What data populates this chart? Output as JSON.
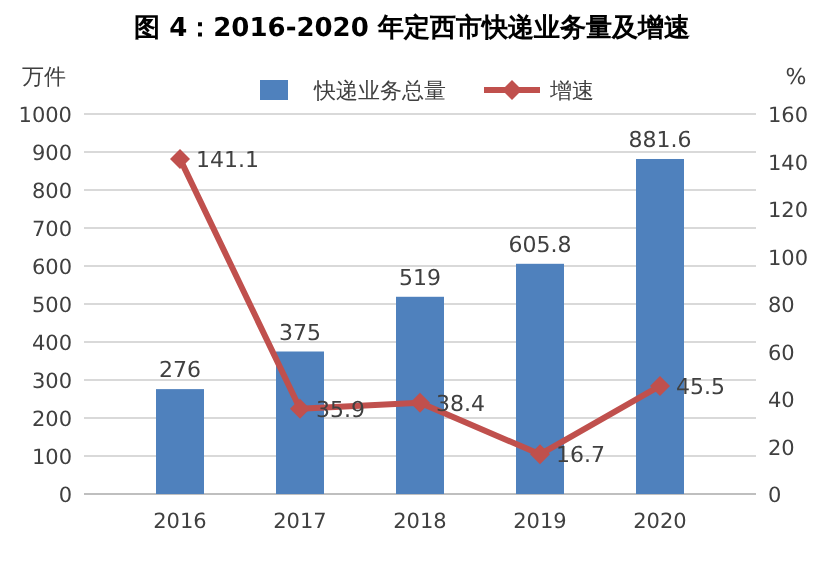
{
  "chart_data": {
    "type": "bar",
    "title": "图 4：2016-2020 年定西市快递业务量及增速",
    "categories": [
      "2016",
      "2017",
      "2018",
      "2019",
      "2020"
    ],
    "series": [
      {
        "name": "快递业务总量",
        "color": "#4f81bd",
        "values": [
          276,
          375,
          519,
          605.8,
          881.6
        ]
      },
      {
        "name": "增速",
        "type": "line",
        "axis": "y2",
        "color": "#c0504d",
        "marker": "diamond",
        "values": [
          141.1,
          35.9,
          38.4,
          16.7,
          45.5
        ]
      }
    ],
    "ylabel": "万件",
    "y2label": "%",
    "ylim": [
      0,
      1000
    ],
    "yticks": [
      0,
      100,
      200,
      300,
      400,
      500,
      600,
      700,
      800,
      900,
      1000
    ],
    "y2lim": [
      0,
      160
    ],
    "y2ticks": [
      0,
      20,
      40,
      60,
      80,
      100,
      120,
      140,
      160
    ],
    "grid": "y",
    "legend": "top",
    "data_labels": true
  }
}
